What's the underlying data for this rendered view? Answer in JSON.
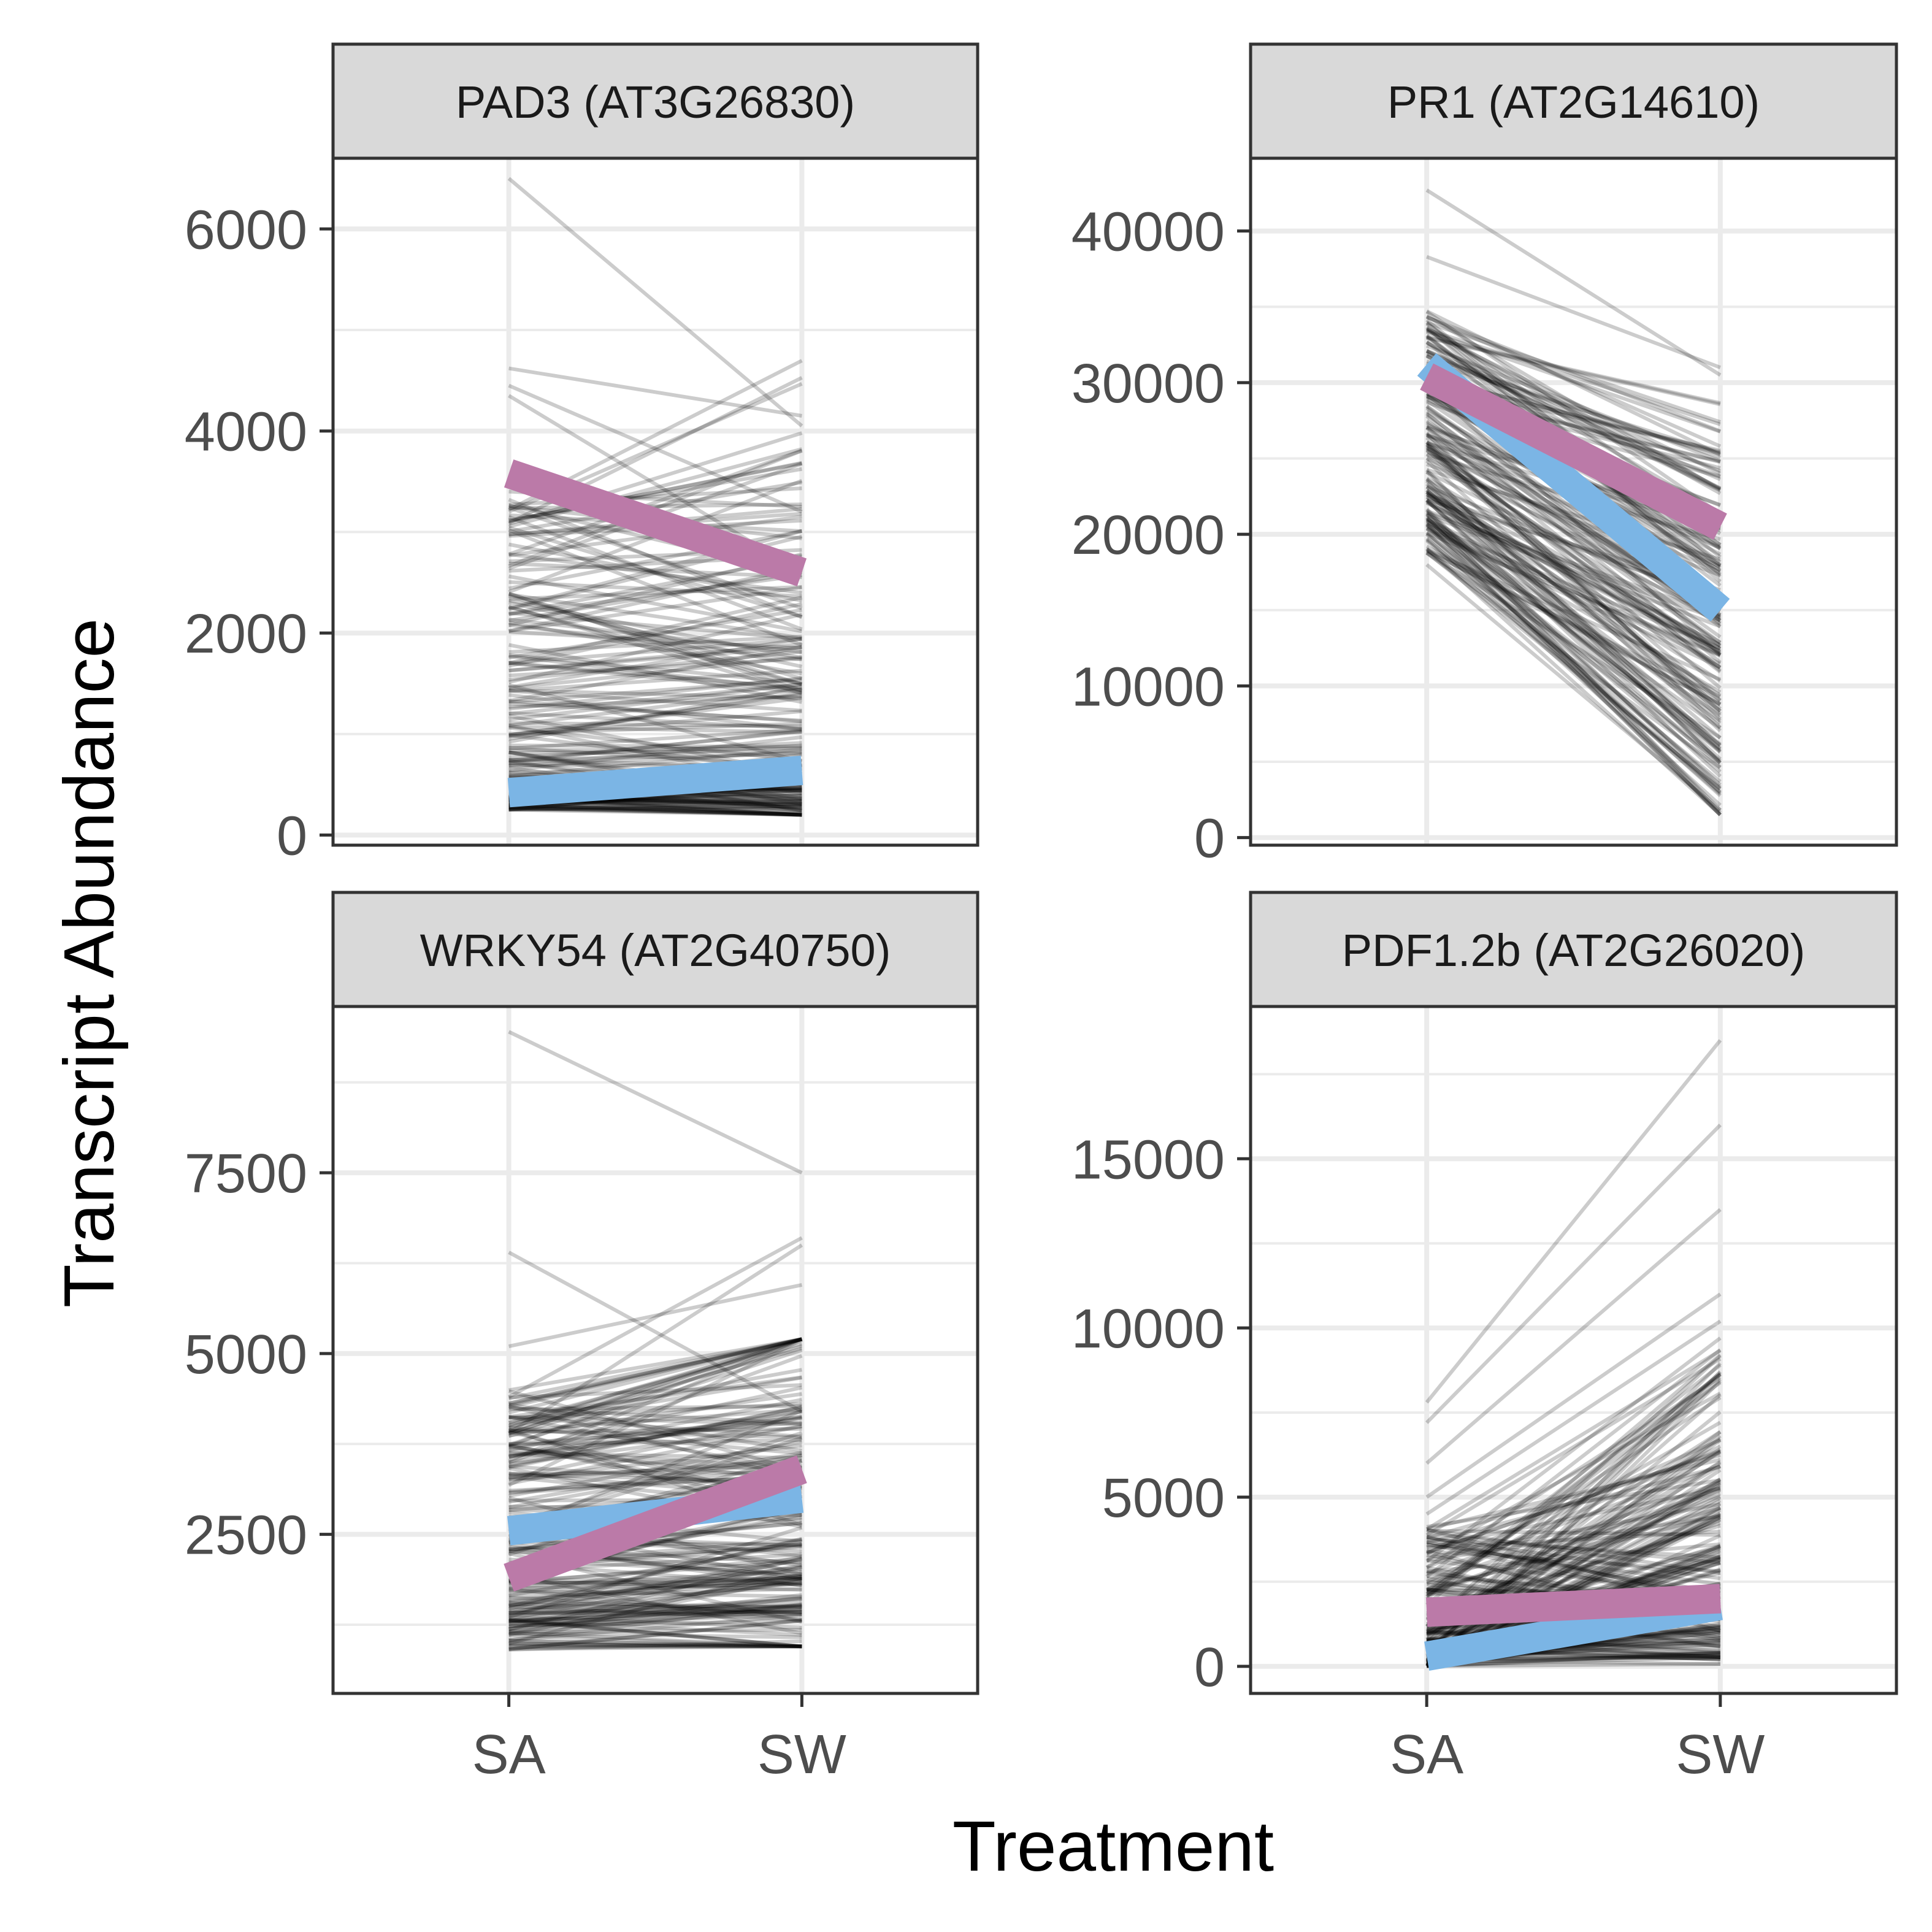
{
  "figure": {
    "ylabel": "Transcript Abundance",
    "xlabel": "Treatment",
    "categories": [
      "SA",
      "SW"
    ]
  },
  "colors": {
    "panel_bg": "#ffffff",
    "panel_border": "#333333",
    "strip_bg": "#d9d9d9",
    "grid": "#ebebeb",
    "sample_lines": "#000000",
    "highlight_blue": "#7bb5e5",
    "highlight_pink": "#bb7aa8",
    "tick_text": "#4d4d4d"
  },
  "chart_data": [
    {
      "type": "line",
      "title": "PAD3 (AT3G26830)",
      "categories": [
        "SA",
        "SW"
      ],
      "ylim": [
        -100,
        6700
      ],
      "yticks": [
        0,
        2000,
        4000,
        6000
      ],
      "yticklabels": [
        "0",
        "2000",
        "4000",
        "6000"
      ],
      "minor_yticks": [
        1000,
        3000,
        5000
      ],
      "series": [
        {
          "color": "#7bb5e5",
          "values": [
            420,
            640
          ]
        },
        {
          "color": "#bb7aa8",
          "values": [
            3580,
            2600
          ]
        }
      ],
      "sample_ranges": {
        "SA": [
          280,
          6500
        ],
        "SW": [
          200,
          4150
        ]
      },
      "notable_samples": [
        [
          6500,
          4050
        ],
        [
          4620,
          4150
        ],
        [
          4450,
          3200
        ],
        [
          4350,
          2600
        ],
        [
          3400,
          3250
        ]
      ]
    },
    {
      "type": "line",
      "title": "PR1 (AT2G14610)",
      "categories": [
        "SA",
        "SW"
      ],
      "ylim": [
        -500,
        44800
      ],
      "yticks": [
        0,
        10000,
        20000,
        30000,
        40000
      ],
      "yticklabels": [
        "0",
        "10000",
        "20000",
        "30000",
        "40000"
      ],
      "minor_yticks": [
        5000,
        15000,
        25000,
        35000
      ],
      "series": [
        {
          "color": "#7bb5e5",
          "values": [
            31200,
            15000
          ]
        },
        {
          "color": "#bb7aa8",
          "values": [
            30400,
            20500
          ]
        }
      ],
      "sample_ranges": {
        "SA": [
          18000,
          42700
        ],
        "SW": [
          1500,
          31800
        ]
      },
      "notable_samples": [
        [
          42700,
          30500
        ],
        [
          38300,
          31000
        ],
        [
          18000,
          1800
        ],
        [
          20000,
          3000
        ]
      ]
    },
    {
      "type": "line",
      "title": "WRKY54 (AT2G40750)",
      "categories": [
        "SA",
        "SW"
      ],
      "ylim": [
        300,
        9800
      ],
      "yticks": [
        2500,
        5000,
        7500
      ],
      "yticklabels": [
        "2500",
        "5000",
        "7500"
      ],
      "minor_yticks": [
        1250,
        3750,
        6250,
        8750
      ],
      "series": [
        {
          "color": "#7bb5e5",
          "values": [
            2550,
            3000
          ]
        },
        {
          "color": "#bb7aa8",
          "values": [
            1900,
            3400
          ]
        }
      ],
      "sample_ranges": {
        "SA": [
          850,
          9450
        ],
        "SW": [
          950,
          7500
        ]
      },
      "notable_samples": [
        [
          9450,
          7500
        ],
        [
          6400,
          4200
        ],
        [
          4400,
          6600
        ],
        [
          3900,
          6500
        ],
        [
          5100,
          5950
        ]
      ]
    },
    {
      "type": "line",
      "title": "PDF1.2b (AT2G26020)",
      "categories": [
        "SA",
        "SW"
      ],
      "ylim": [
        -800,
        19500
      ],
      "yticks": [
        0,
        5000,
        10000,
        15000
      ],
      "yticklabels": [
        "0",
        "5000",
        "10000",
        "15000"
      ],
      "minor_yticks": [
        2500,
        7500,
        12500,
        17500
      ],
      "series": [
        {
          "color": "#7bb5e5",
          "values": [
            300,
            1800
          ]
        },
        {
          "color": "#bb7aa8",
          "values": [
            1600,
            2000
          ]
        }
      ],
      "sample_ranges": {
        "SA": [
          0,
          7800
        ],
        "SW": [
          0,
          18500
        ]
      },
      "notable_samples": [
        [
          7800,
          18500
        ],
        [
          7200,
          16000
        ],
        [
          6000,
          13500
        ],
        [
          5000,
          11000
        ],
        [
          4500,
          10200
        ]
      ]
    }
  ]
}
